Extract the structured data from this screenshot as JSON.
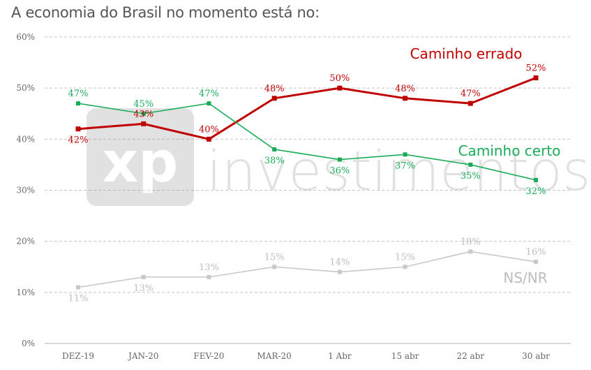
{
  "title": "A economia do Brasil no momento está no:",
  "watermark": {
    "logo": "xp",
    "text": "investimentos"
  },
  "chart_data": {
    "type": "line",
    "title": "A economia do Brasil no momento está no:",
    "categories": [
      "DEZ-19",
      "JAN-20",
      "FEV-20",
      "MAR-20",
      "1 Abr",
      "15 abr",
      "22 abr",
      "30 abr"
    ],
    "ylim": [
      0,
      60
    ],
    "yticks": [
      "0%",
      "10%",
      "20%",
      "30%",
      "40%",
      "50%",
      "60%"
    ],
    "grid": "horizontal dashed",
    "series": [
      {
        "name": "Caminho errado",
        "color": "#c00000",
        "values": [
          42,
          43,
          40,
          48,
          50,
          48,
          47,
          52
        ],
        "labels": [
          "42%",
          "43%",
          "40%",
          "48%",
          "50%",
          "48%",
          "47%",
          "52%"
        ]
      },
      {
        "name": "Caminho certo",
        "color": "#1aab58",
        "values": [
          47,
          45,
          47,
          38,
          36,
          37,
          35,
          32
        ],
        "labels": [
          "47%",
          "45%",
          "47%",
          "38%",
          "36%",
          "37%",
          "35%",
          "32%"
        ]
      },
      {
        "name": "NS/NR",
        "color": "#c8c8c8",
        "values": [
          11,
          13,
          13,
          15,
          14,
          15,
          18,
          16
        ],
        "labels": [
          "11%",
          "13%",
          "13%",
          "15%",
          "14%",
          "15%",
          "18%",
          "16%"
        ]
      }
    ]
  }
}
